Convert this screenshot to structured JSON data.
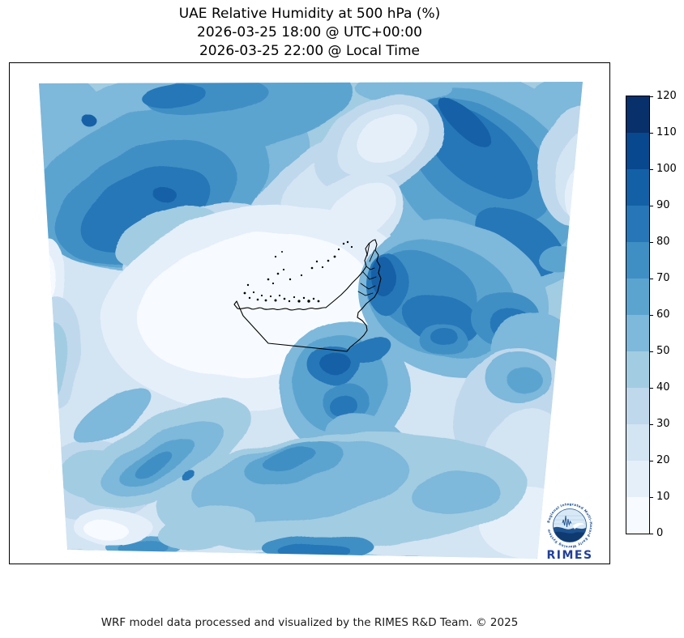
{
  "title": {
    "line1": "UAE Relative Humidity at 500 hPa (%)",
    "line2": "2026-03-25 18:00 @ UTC+00:00",
    "line3": "2026-03-25 22:00 @ Local Time"
  },
  "footer": {
    "credit": "WRF model data processed and visualized by the RIMES R&D Team. © 2025"
  },
  "logo": {
    "wordmark": "RIMES",
    "ring_text": "Regional Integrated Multi-Hazard Early Warning System"
  },
  "chart_data": {
    "type": "heatmap",
    "title": "UAE Relative Humidity at 500 hPa (%)",
    "valid_time_utc": "2026-03-25 18:00 @ UTC+00:00",
    "valid_time_local": "2026-03-25 22:00 @ Local Time",
    "variable": "Relative Humidity",
    "pressure_level": "500 hPa",
    "units": "%",
    "region": "UAE",
    "colormap": "Blues",
    "value_range": [
      0,
      120
    ],
    "contour_interval": 10,
    "colorbar_ticks": [
      0,
      10,
      20,
      30,
      40,
      50,
      60,
      70,
      80,
      90,
      100,
      110,
      120
    ],
    "levels": [
      {
        "from": 0,
        "to": 10,
        "color": "#f7fbff"
      },
      {
        "from": 10,
        "to": 20,
        "color": "#e5effa"
      },
      {
        "from": 20,
        "to": 30,
        "color": "#d3e4f3"
      },
      {
        "from": 30,
        "to": 40,
        "color": "#bfd8ec"
      },
      {
        "from": 40,
        "to": 50,
        "color": "#a2cce2"
      },
      {
        "from": 50,
        "to": 60,
        "color": "#7eb8da"
      },
      {
        "from": 60,
        "to": 70,
        "color": "#5ca4d0"
      },
      {
        "from": 70,
        "to": 80,
        "color": "#3f8fc4"
      },
      {
        "from": 80,
        "to": 90,
        "color": "#2777b8"
      },
      {
        "from": 90,
        "to": 100,
        "color": "#1360a7"
      },
      {
        "from": 100,
        "to": 110,
        "color": "#08488f"
      },
      {
        "from": 110,
        "to": 120,
        "color": "#08306b"
      }
    ],
    "legend_position": "right",
    "overlays": [
      "UAE coastline and borders with islands",
      "RIMES logo badge"
    ]
  }
}
